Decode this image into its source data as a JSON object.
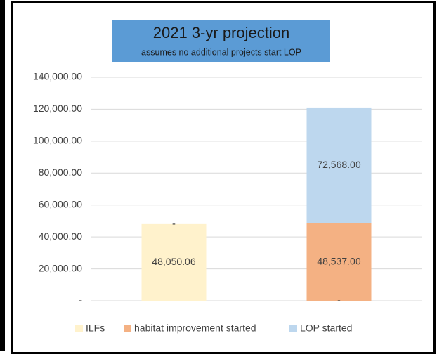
{
  "chart_data": {
    "type": "stacked_bar",
    "title": "2021 3-yr projection",
    "subtitle": "assumes no additional projects start LOP",
    "categories": [
      null,
      null
    ],
    "series": [
      {
        "name": "ILFs",
        "color": "#fff2cc",
        "values": [
          48050.06,
          0
        ],
        "value_labels": [
          "48,050.06",
          "-"
        ]
      },
      {
        "name": "habitat improvement started",
        "color": "#f4b183",
        "values": [
          0,
          48537
        ],
        "value_labels": [
          "-",
          "48,537.00"
        ]
      },
      {
        "name": "LOP started",
        "color": "#bdd7ee",
        "values": [
          0,
          72568
        ],
        "value_labels": [
          "-",
          "72,568.00"
        ]
      }
    ],
    "ylim": [
      0,
      140000
    ],
    "yticks": [
      {
        "value": 0,
        "label": "-"
      },
      {
        "value": 20000,
        "label": "20,000.00"
      },
      {
        "value": 40000,
        "label": "40,000.00"
      },
      {
        "value": 60000,
        "label": "60,000.00"
      },
      {
        "value": 80000,
        "label": "80,000.00"
      },
      {
        "value": 100000,
        "label": "100,000.00"
      },
      {
        "value": 120000,
        "label": "120,000.00"
      },
      {
        "value": 140000,
        "label": "140,000.00"
      }
    ],
    "grid": true,
    "legend": "bottom"
  }
}
